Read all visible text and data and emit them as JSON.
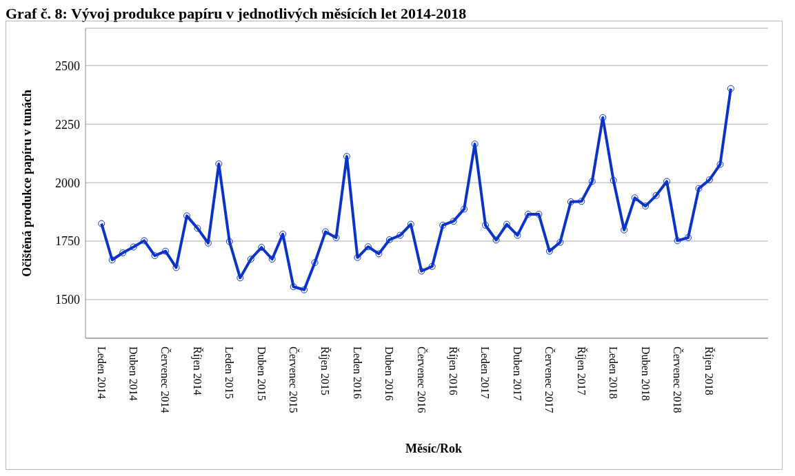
{
  "chart_data": {
    "type": "line",
    "title": "Graf č. 8: Vývoj produkce papíru v jednotlivých měsících let 2014-2018",
    "xlabel": "Měsíc/Rok",
    "ylabel": "Očištěná produkce papíru v tunách",
    "categories": [
      "Leden 2014",
      null,
      null,
      "Duben 2014",
      null,
      null,
      "Červenec 2014",
      null,
      null,
      "Říjen 2014",
      null,
      null,
      "Leden 2015",
      null,
      null,
      "Duben 2015",
      null,
      null,
      "Červenec 2015",
      null,
      null,
      "Říjen 2015",
      null,
      null,
      "Leden 2016",
      null,
      null,
      "Duben 2016",
      null,
      null,
      "Červenec 2016",
      null,
      null,
      "Říjen 2016",
      null,
      null,
      "Leden 2017",
      null,
      null,
      "Duben 2017",
      null,
      null,
      "Červenec 2017",
      null,
      null,
      "Říjen 2017",
      null,
      null,
      "Leden 2018",
      null,
      null,
      "Duben 2018",
      null,
      null,
      "Červenec 2018",
      null,
      null,
      "Říjen 2018",
      null,
      null
    ],
    "series": [
      {
        "color": "#0a34c8",
        "values": [
          1825,
          1670,
          1700,
          1725,
          1752,
          1688,
          1707,
          1637,
          1858,
          1805,
          1742,
          2080,
          1748,
          1593,
          1673,
          1723,
          1673,
          1780,
          1555,
          1542,
          1658,
          1790,
          1765,
          2112,
          1680,
          1726,
          1696,
          1756,
          1775,
          1822,
          1622,
          1642,
          1818,
          1835,
          1887,
          2165,
          1818,
          1755,
          1822,
          1775,
          1865,
          1865,
          1707,
          1745,
          1918,
          1920,
          2005,
          2278,
          2010,
          1798,
          1935,
          1900,
          1945,
          2005,
          1752,
          1765,
          1975,
          2012,
          2078,
          2402
        ]
      }
    ],
    "ylim": [
      1335,
      2660
    ],
    "yticks": [
      1500,
      1750,
      2000,
      2250,
      2500
    ],
    "grid": "y",
    "marker": "circle",
    "line_style": "solid"
  }
}
